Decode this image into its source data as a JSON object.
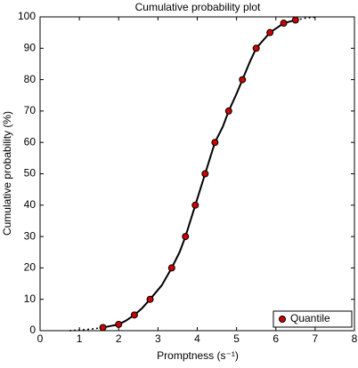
{
  "chart_data": {
    "type": "line",
    "title": "Cumulative probability plot",
    "xlabel": "Promptness (s⁻¹)",
    "ylabel": "Cumulative probability (%)",
    "xlim": [
      0,
      8
    ],
    "ylim": [
      0,
      100
    ],
    "xticks": [
      0,
      1,
      2,
      3,
      4,
      5,
      6,
      7,
      8
    ],
    "yticks": [
      0,
      10,
      20,
      30,
      40,
      50,
      60,
      70,
      80,
      90,
      100
    ],
    "grid": false,
    "legend": "lower right",
    "series": [
      {
        "name": "Quantile",
        "color": "#cc0000",
        "marker": "circle",
        "x": [
          1.6,
          2.0,
          2.4,
          2.8,
          3.35,
          3.7,
          3.95,
          4.2,
          4.45,
          4.8,
          5.15,
          5.5,
          5.85,
          6.2,
          6.5
        ],
        "values": [
          1,
          2,
          5,
          10,
          20,
          30,
          40,
          50,
          60,
          70,
          80,
          90,
          95,
          98,
          99
        ]
      }
    ],
    "curve": {
      "color": "#000000",
      "x": [
        1.6,
        1.8,
        2.0,
        2.2,
        2.4,
        2.6,
        2.8,
        3.1,
        3.35,
        3.55,
        3.7,
        3.95,
        4.2,
        4.45,
        4.65,
        4.8,
        5.0,
        5.15,
        5.35,
        5.5,
        5.85,
        6.2,
        6.5
      ],
      "values": [
        1,
        1.5,
        2,
        3.3,
        5,
        7.2,
        10,
        14.5,
        20,
        25,
        30,
        40,
        50,
        60,
        65,
        70,
        75.5,
        80,
        86,
        90,
        95,
        98,
        99
      ]
    },
    "tails": [
      {
        "color": "#000000",
        "x": [
          0.75,
          1.0,
          1.3,
          1.6
        ],
        "values": [
          0,
          0.2,
          0.5,
          1
        ]
      },
      {
        "color": "#000000",
        "x": [
          6.5,
          6.75,
          7.0
        ],
        "values": [
          99,
          99.6,
          99.9
        ]
      }
    ]
  }
}
